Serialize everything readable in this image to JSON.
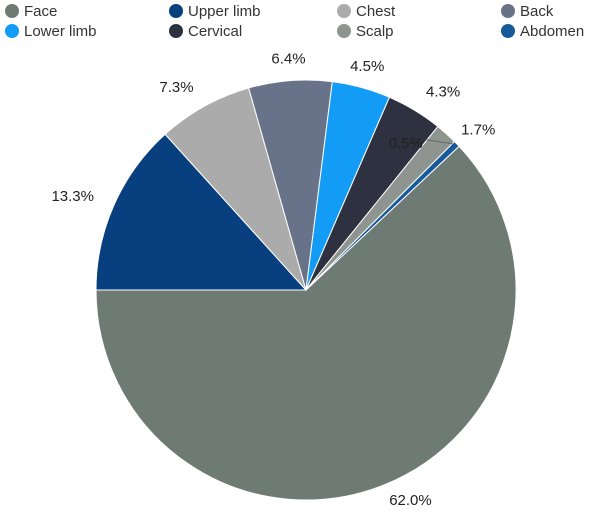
{
  "chart_data": {
    "type": "pie",
    "title": "",
    "legend_position": "top",
    "slices": [
      {
        "label": "Face",
        "value": 62.0,
        "value_label": "62.0%",
        "color": "#6e7a74"
      },
      {
        "label": "Upper limb",
        "value": 13.3,
        "value_label": "13.3%",
        "color": "#083f7e"
      },
      {
        "label": "Chest",
        "value": 7.3,
        "value_label": "7.3%",
        "color": "#ababab"
      },
      {
        "label": "Back",
        "value": 6.4,
        "value_label": "6.4%",
        "color": "#687288"
      },
      {
        "label": "Lower limb",
        "value": 4.5,
        "value_label": "4.5%",
        "color": "#129cf5"
      },
      {
        "label": "Cervical",
        "value": 4.3,
        "value_label": "4.3%",
        "color": "#2e3140"
      },
      {
        "label": "Scalp",
        "value": 1.7,
        "value_label": "1.7%",
        "color": "#8e948f"
      },
      {
        "label": "Abdomen",
        "value": 0.5,
        "value_label": "0.5%",
        "color": "#17599a"
      }
    ]
  }
}
